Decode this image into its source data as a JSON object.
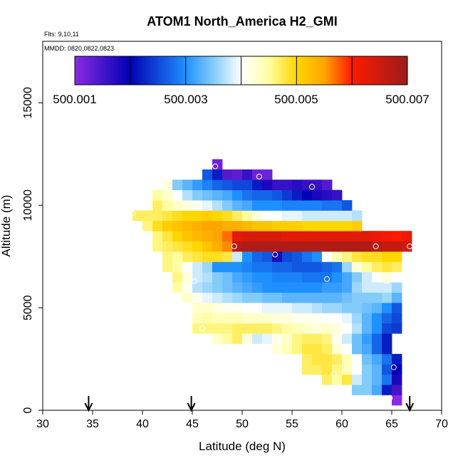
{
  "chart_data": {
    "type": "heatmap",
    "title": "ATOM1 North_America H2_GMI",
    "flights_label": "Flts: 9,10,11",
    "dates_label": "MMDD: 0820,0822,0823",
    "xlabel": "Latitude (deg N)",
    "ylabel": "Altitude (m)",
    "xlim": [
      30,
      70
    ],
    "ylim": [
      0,
      18000
    ],
    "x_ticks": [
      "30",
      "35",
      "40",
      "45",
      "50",
      "55",
      "60",
      "65",
      "70"
    ],
    "y_ticks": [
      "0",
      "5000",
      "10000",
      "15000"
    ],
    "colorbar": {
      "min": 500.001,
      "max": 500.007,
      "tick_labels": [
        "500.001",
        "500.003",
        "500.005",
        "500.007"
      ],
      "colors": [
        "#8a2be2",
        "#0000b4",
        "#1e90ff",
        "#00bfff",
        "#ffffff",
        "#ffffaa",
        "#ffd700",
        "#ff8c00",
        "#ff0000",
        "#a01818"
      ]
    },
    "arrow_latitudes": [
      34.6,
      44.9,
      66.8
    ],
    "circle_markers": [
      {
        "lat": 47.3,
        "alt": 11900
      },
      {
        "lat": 51.7,
        "alt": 11400
      },
      {
        "lat": 57.0,
        "alt": 10900
      },
      {
        "lat": 42.5,
        "alt": 10800
      },
      {
        "lat": 39.0,
        "alt": 9600
      },
      {
        "lat": 49.2,
        "alt": 8000
      },
      {
        "lat": 53.3,
        "alt": 7600
      },
      {
        "lat": 63.4,
        "alt": 8000
      },
      {
        "lat": 66.8,
        "alt": 8000
      },
      {
        "lat": 45.2,
        "alt": 6300
      },
      {
        "lat": 58.5,
        "alt": 6400
      },
      {
        "lat": 64.5,
        "alt": 6300
      },
      {
        "lat": 46.0,
        "alt": 4000
      },
      {
        "lat": 50.5,
        "alt": 3200
      },
      {
        "lat": 59.5,
        "alt": 3000
      },
      {
        "lat": 59.2,
        "alt": 1800
      },
      {
        "lat": 65.2,
        "alt": 2100
      },
      {
        "lat": 64.8,
        "alt": 600
      }
    ],
    "grid_bins": {
      "lat_step": 1,
      "alt_step": 500,
      "rows": [
        {
          "alt": 500,
          "lat_start": 65,
          "values": [
            500.001
          ]
        },
        {
          "alt": 1000,
          "lat_start": 61,
          "values": [
            500.0035,
            500.0035,
            500.0032,
            500.0022,
            500.0015
          ]
        },
        {
          "alt": 1500,
          "lat_start": 58,
          "values": [
            500.0047,
            500.0045,
            500.0048,
            500.0038,
            500.0035,
            500.0033,
            500.0028,
            500.0018
          ]
        },
        {
          "alt": 2000,
          "lat_start": 56,
          "values": [
            500.0047,
            500.0047,
            500.0048,
            500.0046,
            500.0044,
            500.004,
            500.0035,
            500.0033,
            500.0026,
            500.002
          ]
        },
        {
          "alt": 2500,
          "lat_start": 56,
          "values": [
            500.0047,
            500.0048,
            500.0048,
            500.0047,
            500.0044,
            500.004,
            500.0034,
            500.0032,
            500.0028,
            500.0022
          ]
        },
        {
          "alt": 3000,
          "lat_start": 52,
          "values": [
            500.004,
            500.0042,
            500.0044,
            500.0046,
            500.0048,
            500.0048,
            500.0047,
            500.0043,
            500.004,
            500.0034,
            500.0032,
            500.0027,
            500.0022
          ]
        },
        {
          "alt": 3500,
          "lat_start": 47,
          "values": [
            500.0043,
            500.0045,
            500.0047,
            500.0042,
            500.0038,
            500.0039,
            500.0041,
            500.0043,
            500.0046,
            500.0047,
            500.0047,
            500.0046,
            500.0041,
            500.0038,
            500.0034,
            500.0031,
            500.0027,
            500.0022
          ]
        },
        {
          "alt": 4000,
          "lat_start": 45,
          "values": [
            500.0046,
            500.0046,
            500.0046,
            500.0046,
            500.0047,
            500.0047,
            500.0047,
            500.0047,
            500.0046,
            500.0045,
            500.0044,
            500.0043,
            500.0042,
            500.0043,
            500.0042,
            500.004,
            500.0037,
            500.0033,
            500.003,
            500.0025,
            500.0024
          ]
        },
        {
          "alt": 4500,
          "lat_start": 45,
          "values": [
            500.0044,
            500.0045,
            500.0044,
            500.0044,
            500.0044,
            500.0043,
            500.0043,
            500.0043,
            500.0042,
            500.0042,
            500.0041,
            500.0041,
            500.0041,
            500.004,
            500.004,
            500.0039,
            500.0036,
            500.0033,
            500.003,
            500.0027,
            500.0025
          ]
        },
        {
          "alt": 5000,
          "lat_start": 45,
          "values": [
            500.0043,
            500.0043,
            500.0042,
            500.0041,
            500.0041,
            500.004,
            500.004,
            500.0039,
            500.0039,
            500.0039,
            500.0038,
            500.0038,
            500.0037,
            500.0036,
            500.0036,
            500.0035,
            500.0035,
            500.0034,
            500.0033,
            500.003,
            500.0026
          ]
        },
        {
          "alt": 5500,
          "lat_start": 44,
          "values": [
            500.0043,
            500.0041,
            500.0039,
            500.0038,
            500.0037,
            500.0036,
            500.0035,
            500.0035,
            500.0034,
            500.0034,
            500.0033,
            500.0033,
            500.0033,
            500.0033,
            500.0033,
            500.0033,
            500.0034,
            500.0035,
            500.0035,
            500.0035,
            500.0036,
            500.0033
          ]
        },
        {
          "alt": 6000,
          "lat_start": 43,
          "values": [
            500.0045,
            500.0041,
            500.0037,
            500.0036,
            500.0035,
            500.0034,
            500.0033,
            500.0032,
            500.0031,
            500.003,
            500.003,
            500.003,
            500.003,
            500.003,
            500.003,
            500.0031,
            500.0031,
            500.0032,
            500.0036,
            500.0038,
            500.0038,
            500.0038,
            500.0036
          ]
        },
        {
          "alt": 6500,
          "lat_start": 43,
          "values": [
            500.0046,
            500.0042,
            500.0038,
            500.0037,
            500.0035,
            500.0034,
            500.0032,
            500.0031,
            500.003,
            500.003,
            500.0029,
            500.0029,
            500.0029,
            500.0028,
            500.0028,
            500.0028,
            500.003,
            500.0032,
            500.0035,
            500.0038,
            500.004,
            500.0042,
            500.004
          ]
        },
        {
          "alt": 7000,
          "lat_start": 42,
          "values": [
            500.0046,
            500.0045,
            500.004,
            500.0038,
            500.0036,
            500.003,
            500.003,
            500.003,
            500.0029,
            500.0028,
            500.0028,
            500.0027,
            500.0027,
            500.0026,
            500.0026,
            500.0026,
            500.0027,
            500.0028,
            500.0036,
            500.0042,
            500.0045,
            500.0047,
            500.0048,
            500.0047
          ]
        },
        {
          "alt": 7500,
          "lat_start": 42,
          "values": [
            500.0046,
            500.0045,
            500.0047,
            500.0048,
            500.0049,
            500.0049,
            500.0048,
            500.0038,
            500.003,
            500.0027,
            500.0026,
            500.0018,
            500.0025,
            500.0026,
            500.0028,
            500.003,
            500.004,
            500.0044,
            500.0046,
            500.0048,
            500.0049,
            500.0049,
            500.005,
            500.005
          ]
        },
        {
          "alt": 8000,
          "lat_start": 41,
          "values": [
            500.0046,
            500.0047,
            500.0048,
            500.0049,
            500.005,
            500.0052,
            500.0054,
            500.0056,
            500.0067,
            500.0068,
            500.0068,
            500.0068,
            500.0068,
            500.0068,
            500.0068,
            500.0068,
            500.0068,
            500.0068,
            500.0068,
            500.0068,
            500.0068,
            500.0068,
            500.0067,
            500.0066,
            500.0066,
            500.0065
          ]
        },
        {
          "alt": 8500,
          "lat_start": 41,
          "values": [
            500.0046,
            500.0048,
            500.005,
            500.0052,
            500.0053,
            500.0054,
            500.0055,
            500.0057,
            500.0063,
            500.0064,
            500.0064,
            500.0064,
            500.0064,
            500.0063,
            500.0063,
            500.0063,
            500.0063,
            500.0063,
            500.0063,
            500.0063,
            500.0063,
            500.0063,
            500.0062,
            500.0061,
            500.006,
            500.0062
          ]
        },
        {
          "alt": 9000,
          "lat_start": 40,
          "values": [
            500.0046,
            500.0049,
            500.0051,
            500.0052,
            500.0053,
            500.0054,
            500.0055,
            500.0055,
            500.0054,
            500.0054,
            500.0053,
            500.0052,
            500.0052,
            500.0051,
            500.0051,
            500.0051,
            500.005,
            500.005,
            500.005,
            500.005,
            500.005,
            500.0051
          ]
        },
        {
          "alt": 9500,
          "lat_start": 39,
          "values": [
            500.0047,
            500.0047,
            500.0047,
            500.0048,
            500.0049,
            500.005,
            500.005,
            500.0051,
            500.005,
            500.0049,
            500.0047,
            500.0045,
            500.0042,
            500.004,
            500.004,
            500.0039,
            500.0039,
            500.0038,
            500.0038,
            500.0038,
            500.0038,
            500.0038,
            500.0037
          ]
        },
        {
          "alt": 10000,
          "lat_start": 41,
          "values": [
            500.0047,
            500.0045,
            500.0043,
            500.0042,
            500.0041,
            500.0039,
            500.0037,
            500.0035,
            500.0033,
            500.0032,
            500.003,
            500.003,
            500.003,
            500.0029,
            500.0029,
            500.0029,
            500.0029,
            500.0028,
            500.0028,
            500.0026
          ]
        },
        {
          "alt": 10500,
          "lat_start": 41,
          "values": [
            500.0045,
            500.0043,
            500.004,
            500.0037,
            500.0035,
            500.0034,
            500.0033,
            500.0032,
            500.003,
            500.0028,
            500.0027,
            500.0027,
            500.0026,
            500.0024,
            500.0022,
            500.002,
            500.0018,
            500.0017,
            500.0016
          ]
        },
        {
          "alt": 11000,
          "lat_start": 42,
          "values": [
            500.0042,
            500.0035,
            500.0033,
            500.0031,
            500.0029,
            500.0027,
            500.0026,
            500.0025,
            500.0025,
            500.0022,
            500.0018,
            500.0016,
            500.0016,
            500.0017,
            500.0016,
            500.0016,
            500.0014
          ]
        },
        {
          "alt": 11500,
          "lat_start": 46,
          "values": [
            500.0026,
            500.0022,
            500.0014,
            500.0013,
            500.0016,
            500.0012,
            500.0012
          ]
        },
        {
          "alt": 12000,
          "lat_start": 47,
          "values": [
            500.0012
          ]
        }
      ]
    }
  }
}
